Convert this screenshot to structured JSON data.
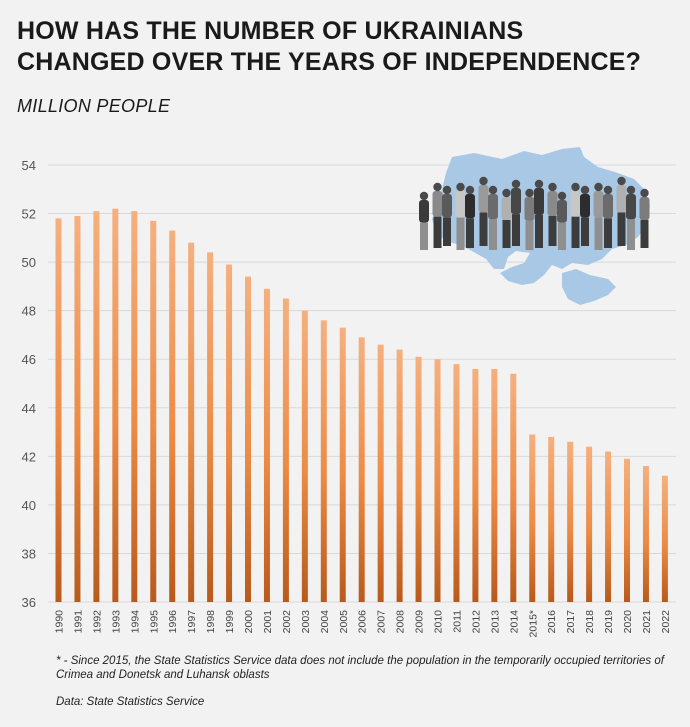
{
  "header": {
    "title_line1": "HOW HAS THE NUMBER OF UKRAINIANS",
    "title_line2": "CHANGED OVER THE YEARS OF INDEPENDENCE?",
    "unit": "MILLION PEOPLE"
  },
  "footer": {
    "footnote": "* - Since 2015, the State Statistics Service data does not include the population in the temporarily occupied territories of Crimea and Donetsk and Luhansk oblasts",
    "source": "Data: State Statistics Service"
  },
  "colors": {
    "bar_top": "#f5b07f",
    "bar_mid": "#ec8b45",
    "bar_bottom": "#b85a1c",
    "gridline": "#d9d9d9",
    "map": "#a9c8e6"
  },
  "chart_data": {
    "type": "bar",
    "title": "HOW HAS THE NUMBER OF UKRAINIANS CHANGED OVER THE YEARS OF INDEPENDENCE?",
    "ylabel": "MILLION PEOPLE",
    "xlabel": "",
    "ylim": [
      36,
      54
    ],
    "yticks": [
      36,
      38,
      40,
      42,
      44,
      46,
      48,
      50,
      52,
      54
    ],
    "grid": true,
    "categories": [
      "1990",
      "1991",
      "1992",
      "1993",
      "1994",
      "1995",
      "1996",
      "1997",
      "1998",
      "1999",
      "2000",
      "2001",
      "2002",
      "2003",
      "2004",
      "2005",
      "2006",
      "2007",
      "2008",
      "2009",
      "2010",
      "2011",
      "2012",
      "2013",
      "2014",
      "2015*",
      "2016",
      "2017",
      "2018",
      "2019",
      "2020",
      "2021",
      "2022"
    ],
    "values": [
      51.8,
      51.9,
      52.1,
      52.2,
      52.1,
      51.7,
      51.3,
      50.8,
      50.4,
      49.9,
      49.4,
      48.9,
      48.5,
      48.0,
      47.6,
      47.3,
      46.9,
      46.6,
      46.4,
      46.1,
      46.0,
      45.8,
      45.6,
      45.6,
      45.4,
      42.9,
      42.8,
      42.6,
      42.4,
      42.2,
      41.9,
      41.6,
      41.2
    ]
  }
}
